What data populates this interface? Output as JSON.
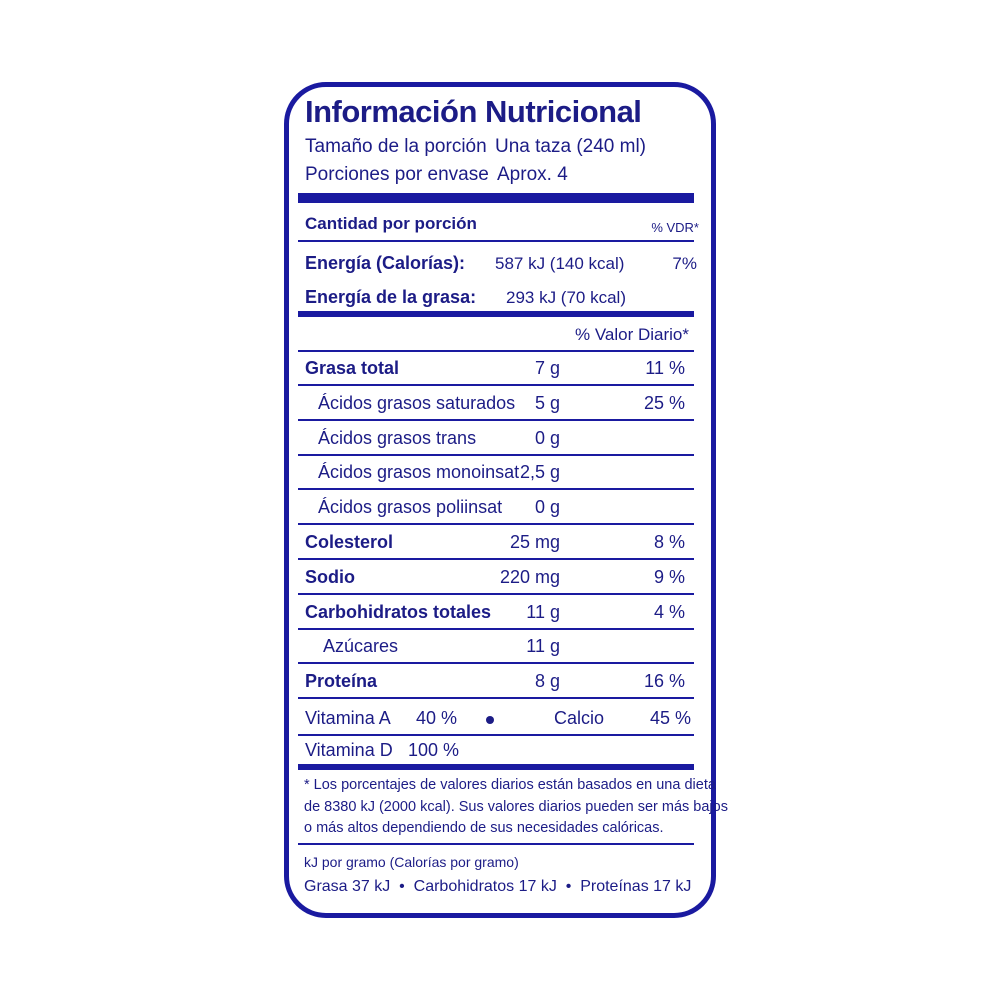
{
  "title": "Información Nutricional",
  "serving_size_label": "Tamaño de la porción",
  "serving_size_value": "Una taza (240 ml)",
  "servings_label": "Porciones por envase",
  "servings_value": "Aprox. 4",
  "amount_per_serving": "Cantidad por porción",
  "vdr_header": "% VDR*",
  "energy_label": "Energía (Calorías):",
  "energy_value": "587 kJ (140 kcal)",
  "energy_percent": "7%",
  "fat_energy_label": "Energía de la grasa:",
  "fat_energy_value": "293 kJ (70 kcal)",
  "daily_value_header": "% Valor Diario*",
  "nutrients": [
    {
      "label": "Grasa total",
      "amount": "7 g",
      "percent": "11 %",
      "bold": true,
      "indent": 0
    },
    {
      "label": "Ácidos grasos saturados",
      "amount": "5 g",
      "percent": "25 %",
      "bold": false,
      "indent": 1
    },
    {
      "label": "Ácidos grasos trans",
      "amount": "0 g",
      "percent": "",
      "bold": false,
      "indent": 1
    },
    {
      "label": "Ácidos grasos monoinsat",
      "amount": "2,5 g",
      "percent": "",
      "bold": false,
      "indent": 1
    },
    {
      "label": "Ácidos grasos poliinsat",
      "amount": "0 g",
      "percent": "",
      "bold": false,
      "indent": 1
    },
    {
      "label": "Colesterol",
      "amount": "25 mg",
      "percent": "8 %",
      "bold": true,
      "indent": 0
    },
    {
      "label": "Sodio",
      "amount": "220 mg",
      "percent": "9 %",
      "bold": true,
      "indent": 0
    },
    {
      "label": "Carbohidratos totales",
      "amount": "11 g",
      "percent": "4 %",
      "bold": true,
      "indent": 0
    },
    {
      "label": "Azúcares",
      "amount": "11 g",
      "percent": "",
      "bold": false,
      "indent": 2
    },
    {
      "label": "Proteína",
      "amount": "8 g",
      "percent": "16 %",
      "bold": true,
      "indent": 0
    }
  ],
  "vitamins": {
    "vitamin_a_label": "Vitamina A",
    "vitamin_a_value": "40 %",
    "calcium_label": "Calcio",
    "calcium_value": "45 %",
    "vitamin_d_label": "Vitamina D",
    "vitamin_d_value": "100 %"
  },
  "footnote": [
    "* Los porcentajes de valores diarios están basados en una dieta",
    "de 8380 kJ (2000 kcal). Sus valores diarios pueden ser más bajos",
    "o más altos dependiendo de sus necesidades calóricas."
  ],
  "kj_per_gram_label": "kJ por gramo (Calorías por gramo)",
  "kj_per_gram_values": "Grasa 37 kJ  •  Carbohidratos 17 kJ  •  Proteínas 17 kJ",
  "colors": {
    "ink": "#1c1c86",
    "border": "#1a1aa0"
  }
}
